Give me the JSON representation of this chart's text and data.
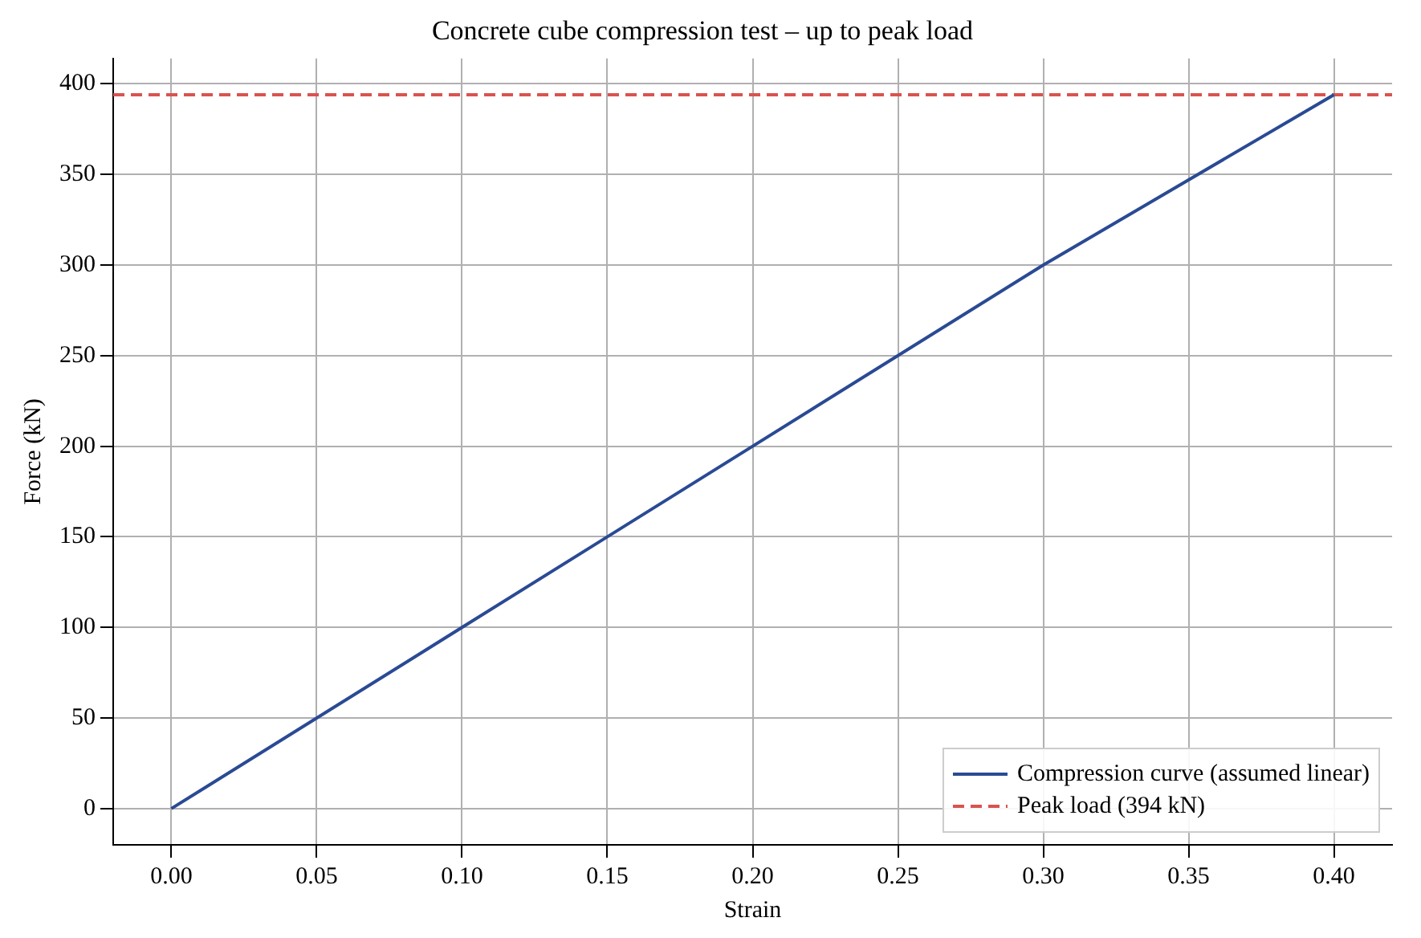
{
  "chart_data": {
    "type": "line",
    "title": "Concrete cube compression test – up to peak load",
    "xlabel": "Strain",
    "ylabel": "Force (kN)",
    "x": [
      0,
      0.1,
      0.2,
      0.3,
      0.4
    ],
    "series": [
      {
        "name": "Compression curve (assumed linear)",
        "color": "#2a4a94",
        "values": [
          0,
          100,
          200,
          300,
          394
        ]
      }
    ],
    "ref_lines": [
      {
        "axis": "y",
        "value": 394,
        "label": "Peak load (394 kN)",
        "color": "#d9534f",
        "line_style": "dashed"
      }
    ],
    "xlim": [
      -0.02,
      0.42
    ],
    "xticks": [
      {
        "value": 0,
        "label": "0.00"
      },
      {
        "value": 0.05,
        "label": "0.05"
      },
      {
        "value": 0.1,
        "label": "0.10"
      },
      {
        "value": 0.15,
        "label": "0.15"
      },
      {
        "value": 0.2,
        "label": "0.20"
      },
      {
        "value": 0.25,
        "label": "0.25"
      },
      {
        "value": 0.3,
        "label": "0.30"
      },
      {
        "value": 0.35,
        "label": "0.35"
      },
      {
        "value": 0.4,
        "label": "0.40"
      }
    ],
    "ylim": [
      -20,
      414
    ],
    "yticks": [
      0,
      50,
      100,
      150,
      200,
      250,
      300,
      350,
      400
    ],
    "grid": true,
    "legend": "bottom right",
    "marker": "none",
    "line_style": "solid"
  }
}
